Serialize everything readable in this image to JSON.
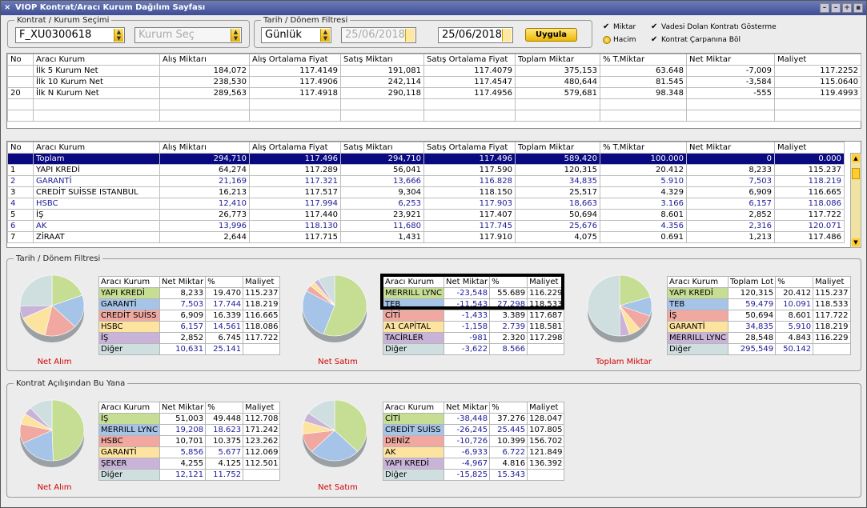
{
  "window": {
    "title": "VIOP Kontrat/Aracı Kurum Dağılım Sayfası",
    "close": "×"
  },
  "kontrat_group": {
    "legend": "Kontrat / Kurum Seçimi",
    "contract": "F_XU0300618",
    "kurum_placeholder": "Kurum Seç"
  },
  "tarih_group": {
    "legend": "Tarih / Dönem Filtresi",
    "period": "Günlük",
    "date_from": "25/06/2018",
    "date_to": "25/06/2018",
    "apply": "Uygula"
  },
  "options": {
    "miktar": "Miktar",
    "hacim": "Hacim",
    "vadesi": "Vadesi Dolan Kontratı Gösterme",
    "carpan": "Kontrat Çarpanına Böl"
  },
  "top_table": {
    "headers": [
      "No",
      "Aracı Kurum",
      "Alış Miktarı",
      "Alış Ortalama Fiyat",
      "Satış Miktarı",
      "Satış Ortalama Fiyat",
      "Toplam Miktar",
      "% T.Miktar",
      "Net Miktar",
      "Maliyet"
    ],
    "rows": [
      [
        "",
        "İlk 5 Kurum Net",
        "184,072",
        "117.4149",
        "191,081",
        "117.4079",
        "375,153",
        "63.648",
        "-7,009",
        "117.2252"
      ],
      [
        "",
        "İlk 10 Kurum Net",
        "238,530",
        "117.4906",
        "242,114",
        "117.4547",
        "480,644",
        "81.545",
        "-3,584",
        "115.0640"
      ],
      [
        "20",
        "İlk N Kurum Net",
        "289,563",
        "117.4918",
        "290,118",
        "117.4956",
        "579,681",
        "98.348",
        "-555",
        "119.4993"
      ]
    ]
  },
  "main_table": {
    "headers": [
      "No",
      "Aracı Kurum",
      "Alış Miktarı",
      "Alış Ortalama Fiyat",
      "Satış Miktarı",
      "Satış Ortalama Fiyat",
      "Toplam Miktar",
      "% T.Miktar",
      "Net Miktar",
      "Maliyet"
    ],
    "rows": [
      [
        "",
        "Toplam",
        "294,710",
        "117.496",
        "294,710",
        "117.496",
        "589,420",
        "100.000",
        "0",
        "0.000"
      ],
      [
        "1",
        "YAPI KREDİ",
        "64,274",
        "117.289",
        "56,041",
        "117.590",
        "120,315",
        "20.412",
        "8,233",
        "115.237"
      ],
      [
        "2",
        "GARANTİ",
        "21,169",
        "117.321",
        "13,666",
        "116.828",
        "34,835",
        "5.910",
        "7,503",
        "118.219"
      ],
      [
        "3",
        "CREDİT SUİSSE ISTANBUL",
        "16,213",
        "117.517",
        "9,304",
        "118.150",
        "25,517",
        "4.329",
        "6,909",
        "116.665"
      ],
      [
        "4",
        "HSBC",
        "12,410",
        "117.994",
        "6,253",
        "117.903",
        "18,663",
        "3.166",
        "6,157",
        "118.086"
      ],
      [
        "5",
        "İŞ",
        "26,773",
        "117.440",
        "23,921",
        "117.407",
        "50,694",
        "8.601",
        "2,852",
        "117.722"
      ],
      [
        "6",
        "AK",
        "13,996",
        "118.130",
        "11,680",
        "117.745",
        "25,676",
        "4.356",
        "2,316",
        "120.071"
      ],
      [
        "7",
        "ZİRAAT",
        "2,644",
        "117.715",
        "1,431",
        "117.910",
        "4,075",
        "0.691",
        "1,213",
        "117.486"
      ]
    ]
  },
  "section1": {
    "legend": "Tarih / Dönem Filtresi",
    "alim": {
      "label": "Net Alım",
      "headers": [
        "Aracı Kurum",
        "Net Miktar",
        "%",
        "Maliyet"
      ],
      "rows": [
        [
          "YAPI KREDİ",
          "8,233",
          "19.470",
          "115.237"
        ],
        [
          "GARANTİ",
          "7,503",
          "17.744",
          "118.219"
        ],
        [
          "CREDİT SUİSS",
          "6,909",
          "16.339",
          "116.665"
        ],
        [
          "HSBC",
          "6,157",
          "14.561",
          "118.086"
        ],
        [
          "İŞ",
          "2,852",
          "6.745",
          "117.722"
        ],
        [
          "Diğer",
          "10,631",
          "25.141",
          ""
        ]
      ]
    },
    "satim": {
      "label": "Net Satım",
      "headers": [
        "Aracı Kurum",
        "Net Miktar",
        "%",
        "Maliyet"
      ],
      "rows": [
        [
          "MERRILL LYNC",
          "-23,548",
          "55.689",
          "116.229"
        ],
        [
          "TEB",
          "-11,543",
          "27.298",
          "118.533"
        ],
        [
          "CİTİ",
          "-1,433",
          "3.389",
          "117.687"
        ],
        [
          "A1 CAPİTAL",
          "-1,158",
          "2.739",
          "118.581"
        ],
        [
          "TACİRLER",
          "-981",
          "2.320",
          "117.298"
        ],
        [
          "Diğer",
          "-3,622",
          "8.566",
          ""
        ]
      ]
    },
    "toplam": {
      "label": "Toplam Miktar",
      "headers": [
        "Aracı Kurum",
        "Toplam Lot",
        "%",
        "Maliyet"
      ],
      "rows": [
        [
          "YAPI KREDİ",
          "120,315",
          "20.412",
          "115.237"
        ],
        [
          "TEB",
          "59,479",
          "10.091",
          "118.533"
        ],
        [
          "İŞ",
          "50,694",
          "8.601",
          "117.722"
        ],
        [
          "GARANTİ",
          "34,835",
          "5.910",
          "118.219"
        ],
        [
          "MERRILL LYNC",
          "28,548",
          "4.843",
          "116.229"
        ],
        [
          "Diğer",
          "295,549",
          "50.142",
          ""
        ]
      ]
    }
  },
  "section2": {
    "legend": "Kontrat Açılışından Bu Yana",
    "alim": {
      "label": "Net Alım",
      "headers": [
        "Aracı Kurum",
        "Net Miktar",
        "%",
        "Maliyet"
      ],
      "rows": [
        [
          "İŞ",
          "51,003",
          "49.448",
          "112.708"
        ],
        [
          "MERRILL LYNC",
          "19,208",
          "18.623",
          "171.242"
        ],
        [
          "HSBC",
          "10,701",
          "10.375",
          "123.262"
        ],
        [
          "GARANTİ",
          "5,856",
          "5.677",
          "112.069"
        ],
        [
          "ŞEKER",
          "4,255",
          "4.125",
          "112.501"
        ],
        [
          "Diğer",
          "12,121",
          "11.752",
          ""
        ]
      ]
    },
    "satim": {
      "label": "Net Satım",
      "headers": [
        "Aracı Kurum",
        "Net Miktar",
        "%",
        "Maliyet"
      ],
      "rows": [
        [
          "CİTİ",
          "-38,448",
          "37.276",
          "128.047"
        ],
        [
          "CREDİT SUİSS",
          "-26,245",
          "25.445",
          "107.805"
        ],
        [
          "DENİZ",
          "-10,726",
          "10.399",
          "156.702"
        ],
        [
          "AK",
          "-6,933",
          "6.722",
          "121.849"
        ],
        [
          "YAPI KREDİ",
          "-4,967",
          "4.816",
          "136.392"
        ],
        [
          "Diğer",
          "-15,825",
          "15.343",
          ""
        ]
      ]
    }
  },
  "colors": {
    "c1": "#c6dd94",
    "c2": "#a6c4e8",
    "c3": "#f0a8a0",
    "c4": "#fde3a0",
    "c5": "#c9b3d8",
    "c6": "#cfdfe0"
  }
}
